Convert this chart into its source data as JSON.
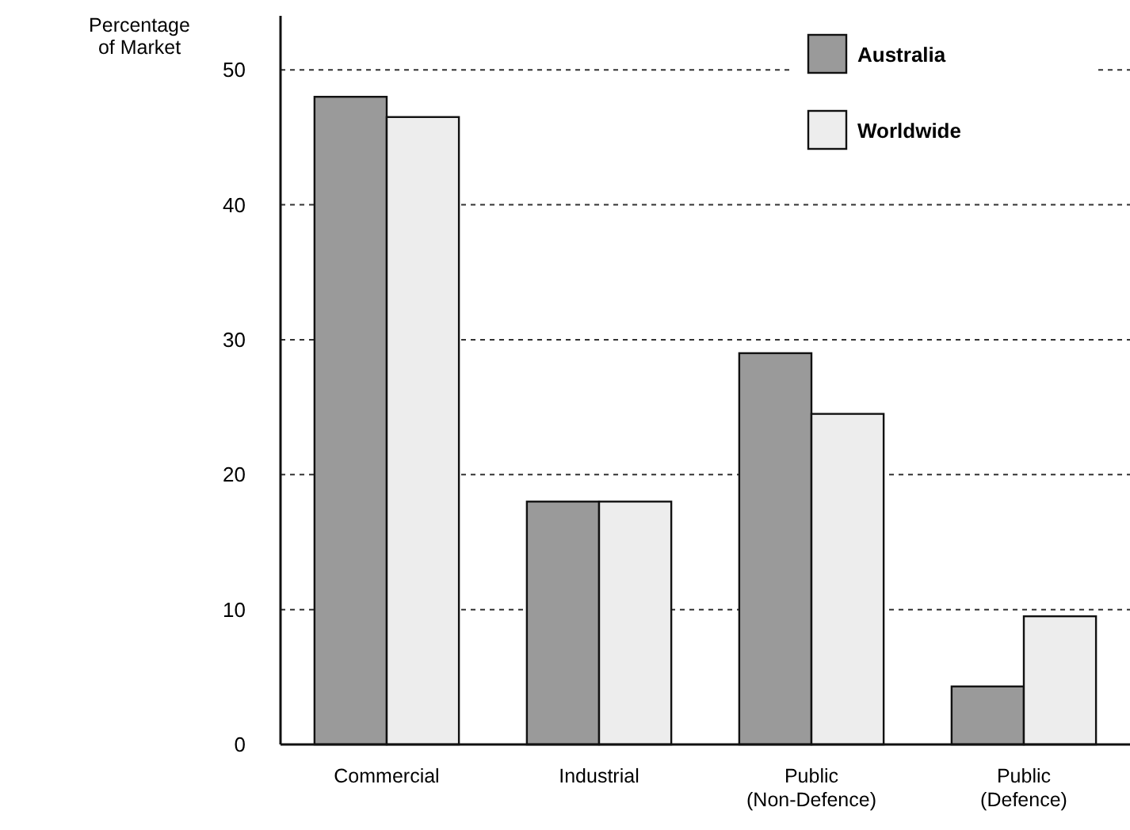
{
  "chart_data": {
    "type": "bar",
    "ylabel": "Percentage\nof Market",
    "categories": [
      "Commercial",
      "Industrial",
      "Public\n(Non-Defence)",
      "Public\n(Defence)"
    ],
    "series": [
      {
        "name": "Australia",
        "color": "#9a9a9a",
        "values": [
          48,
          18,
          29,
          4.3
        ]
      },
      {
        "name": "Worldwide",
        "color": "#ededed",
        "values": [
          46.5,
          18,
          24.5,
          9.5
        ]
      }
    ],
    "ylim": [
      0,
      54
    ],
    "yticks": [
      0,
      10,
      20,
      30,
      40,
      50
    ],
    "grid": "y",
    "legend": "top right"
  }
}
